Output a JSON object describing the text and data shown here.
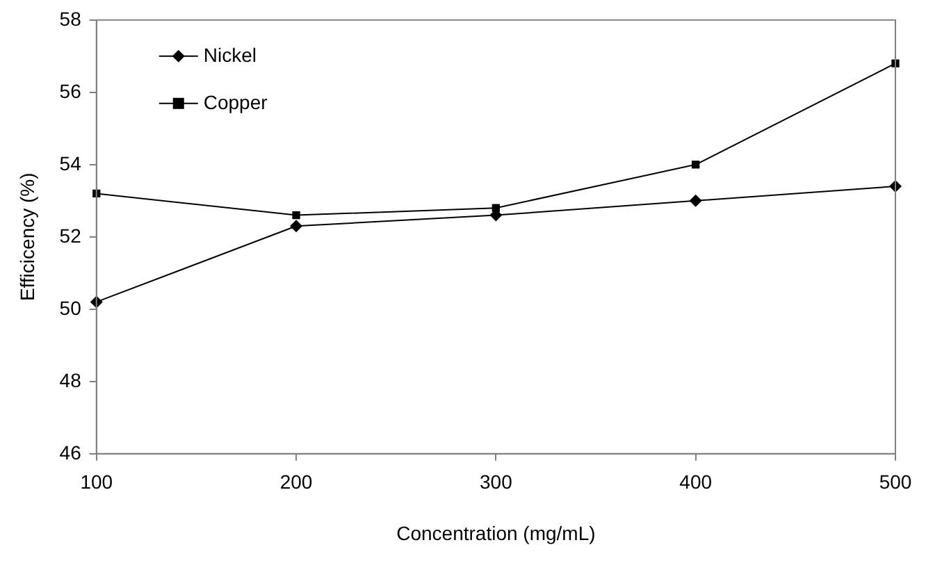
{
  "chart_data": {
    "type": "line",
    "xlabel": "Concentration (mg/mL)",
    "ylabel": "Efficicency (%)",
    "x": [
      100,
      200,
      300,
      400,
      500
    ],
    "series": [
      {
        "name": "Nickel",
        "color": "#000000",
        "marker": "diamond",
        "values": [
          50.2,
          52.3,
          52.6,
          53.0,
          53.4
        ]
      },
      {
        "name": "Copper",
        "color": "#000000",
        "marker": "square",
        "values": [
          53.2,
          52.6,
          52.8,
          54.0,
          56.8
        ]
      }
    ],
    "xlim": [
      100,
      500
    ],
    "xticks": [
      100,
      200,
      300,
      400,
      500
    ],
    "ylim": [
      46,
      58
    ],
    "yticks": [
      46,
      48,
      50,
      52,
      54,
      56,
      58
    ],
    "grid": false,
    "legend": "top left"
  }
}
